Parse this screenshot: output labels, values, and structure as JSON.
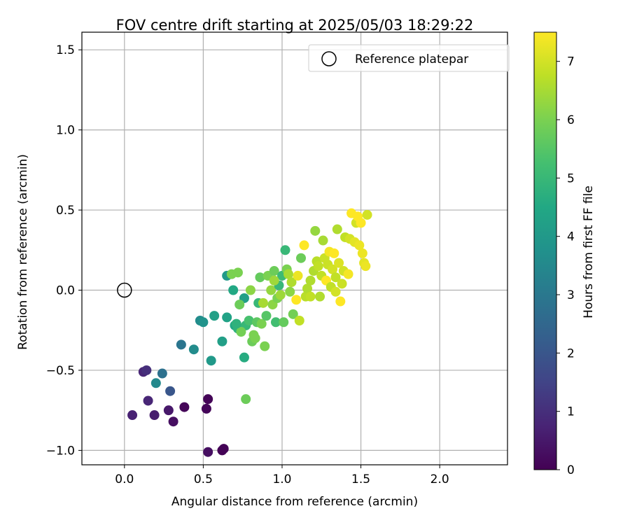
{
  "chart_data": {
    "type": "scatter",
    "title": "FOV centre drift starting at 2025/05/03 18:29:22",
    "xlabel": "Angular distance from reference (arcmin)",
    "ylabel": "Rotation from reference (arcmin)",
    "xlim": [
      -0.27,
      2.43
    ],
    "ylim": [
      -1.09,
      1.61
    ],
    "xticks": [
      0.0,
      0.5,
      1.0,
      1.5,
      2.0
    ],
    "xtick_labels": [
      "0.0",
      "0.5",
      "1.0",
      "1.5",
      "2.0"
    ],
    "yticks": [
      -1.0,
      -0.5,
      0.0,
      0.5,
      1.0,
      1.5
    ],
    "ytick_labels": [
      "−1.0",
      "−0.5",
      "0.0",
      "0.5",
      "1.0",
      "1.5"
    ],
    "grid": true,
    "legend": {
      "placement": "top-right",
      "entries": [
        "Reference platepar"
      ]
    },
    "colorbar": {
      "label": "Hours from first FF file",
      "range": [
        0,
        7.5
      ],
      "ticks": [
        0,
        1,
        2,
        3,
        4,
        5,
        6,
        7
      ],
      "tick_labels": [
        "0",
        "1",
        "2",
        "3",
        "4",
        "5",
        "6",
        "7"
      ],
      "colormap": "viridis"
    },
    "reference": {
      "x": 0.0,
      "y": 0.0
    },
    "points": [
      {
        "x": 0.62,
        "y": -1.0,
        "t": 0.05
      },
      {
        "x": 0.63,
        "y": -0.99,
        "t": 0.05
      },
      {
        "x": 0.53,
        "y": -1.01,
        "t": 0.3
      },
      {
        "x": 0.52,
        "y": -0.74,
        "t": 0.08
      },
      {
        "x": 0.53,
        "y": -0.68,
        "t": 0.06
      },
      {
        "x": 0.38,
        "y": -0.73,
        "t": 0.1
      },
      {
        "x": 0.31,
        "y": -0.82,
        "t": 0.3
      },
      {
        "x": 0.28,
        "y": -0.75,
        "t": 0.5
      },
      {
        "x": 0.19,
        "y": -0.78,
        "t": 0.6
      },
      {
        "x": 0.05,
        "y": -0.78,
        "t": 0.7
      },
      {
        "x": 0.15,
        "y": -0.69,
        "t": 0.8
      },
      {
        "x": 0.12,
        "y": -0.51,
        "t": 0.8
      },
      {
        "x": 0.14,
        "y": -0.5,
        "t": 1.0
      },
      {
        "x": 0.29,
        "y": -0.63,
        "t": 2.0
      },
      {
        "x": 0.24,
        "y": -0.52,
        "t": 2.8
      },
      {
        "x": 0.2,
        "y": -0.58,
        "t": 3.5
      },
      {
        "x": 0.36,
        "y": -0.34,
        "t": 2.9
      },
      {
        "x": 0.44,
        "y": -0.37,
        "t": 3.6
      },
      {
        "x": 0.48,
        "y": -0.19,
        "t": 3.6
      },
      {
        "x": 0.5,
        "y": -0.2,
        "t": 3.8
      },
      {
        "x": 0.55,
        "y": -0.44,
        "t": 4.0
      },
      {
        "x": 0.57,
        "y": -0.16,
        "t": 4.2
      },
      {
        "x": 0.62,
        "y": -0.32,
        "t": 4.2
      },
      {
        "x": 0.65,
        "y": -0.17,
        "t": 4.3
      },
      {
        "x": 0.65,
        "y": 0.09,
        "t": 4.0
      },
      {
        "x": 0.69,
        "y": 0.0,
        "t": 4.5
      },
      {
        "x": 0.7,
        "y": -0.22,
        "t": 4.5
      },
      {
        "x": 0.72,
        "y": -0.24,
        "t": 4.8
      },
      {
        "x": 0.76,
        "y": -0.42,
        "t": 4.6
      },
      {
        "x": 0.76,
        "y": -0.05,
        "t": 4.2
      },
      {
        "x": 0.77,
        "y": -0.22,
        "t": 5.0
      },
      {
        "x": 0.79,
        "y": -0.19,
        "t": 5.3
      },
      {
        "x": 0.68,
        "y": 0.1,
        "t": 6.0
      },
      {
        "x": 0.72,
        "y": 0.11,
        "t": 6.0
      },
      {
        "x": 0.73,
        "y": -0.09,
        "t": 5.8
      },
      {
        "x": 0.74,
        "y": -0.26,
        "t": 5.9
      },
      {
        "x": 0.8,
        "y": 0.0,
        "t": 6.2
      },
      {
        "x": 0.81,
        "y": -0.32,
        "t": 5.8
      },
      {
        "x": 0.82,
        "y": -0.28,
        "t": 6.0
      },
      {
        "x": 0.83,
        "y": -0.3,
        "t": 6.0
      },
      {
        "x": 0.84,
        "y": -0.2,
        "t": 5.6
      },
      {
        "x": 0.85,
        "y": -0.08,
        "t": 5.0
      },
      {
        "x": 0.86,
        "y": 0.08,
        "t": 5.7
      },
      {
        "x": 0.87,
        "y": -0.21,
        "t": 6.0
      },
      {
        "x": 0.88,
        "y": -0.08,
        "t": 6.5
      },
      {
        "x": 0.89,
        "y": -0.35,
        "t": 6.0
      },
      {
        "x": 0.9,
        "y": -0.16,
        "t": 5.5
      },
      {
        "x": 0.91,
        "y": 0.09,
        "t": 6.0
      },
      {
        "x": 0.93,
        "y": 0.0,
        "t": 6.3
      },
      {
        "x": 0.94,
        "y": -0.09,
        "t": 6.2
      },
      {
        "x": 0.95,
        "y": 0.12,
        "t": 5.8
      },
      {
        "x": 0.96,
        "y": -0.2,
        "t": 5.2
      },
      {
        "x": 0.97,
        "y": -0.05,
        "t": 6.0
      },
      {
        "x": 0.98,
        "y": 0.03,
        "t": 5.0
      },
      {
        "x": 0.99,
        "y": -0.03,
        "t": 6.4
      },
      {
        "x": 1.0,
        "y": 0.09,
        "t": 5.1
      },
      {
        "x": 1.01,
        "y": -0.2,
        "t": 5.7
      },
      {
        "x": 1.02,
        "y": 0.25,
        "t": 5.0
      },
      {
        "x": 1.03,
        "y": 0.13,
        "t": 6.0
      },
      {
        "x": 1.04,
        "y": 0.1,
        "t": 6.5
      },
      {
        "x": 1.05,
        "y": -0.01,
        "t": 6.2
      },
      {
        "x": 1.06,
        "y": 0.05,
        "t": 6.6
      },
      {
        "x": 1.07,
        "y": -0.15,
        "t": 5.9
      },
      {
        "x": 1.09,
        "y": -0.06,
        "t": 7.5
      },
      {
        "x": 1.1,
        "y": 0.09,
        "t": 7.3
      },
      {
        "x": 1.11,
        "y": -0.19,
        "t": 6.8
      },
      {
        "x": 1.12,
        "y": 0.2,
        "t": 5.8
      },
      {
        "x": 1.14,
        "y": 0.28,
        "t": 7.5
      },
      {
        "x": 1.15,
        "y": -0.04,
        "t": 6.7
      },
      {
        "x": 1.16,
        "y": 0.01,
        "t": 6.6
      },
      {
        "x": 1.18,
        "y": 0.06,
        "t": 6.6
      },
      {
        "x": 1.2,
        "y": 0.12,
        "t": 6.6
      },
      {
        "x": 1.21,
        "y": 0.37,
        "t": 6.3
      },
      {
        "x": 1.22,
        "y": 0.18,
        "t": 6.7
      },
      {
        "x": 1.23,
        "y": 0.15,
        "t": 6.8
      },
      {
        "x": 1.24,
        "y": -0.04,
        "t": 6.6
      },
      {
        "x": 1.25,
        "y": 0.09,
        "t": 6.8
      },
      {
        "x": 1.26,
        "y": 0.31,
        "t": 6.5
      },
      {
        "x": 1.27,
        "y": 0.2,
        "t": 6.9
      },
      {
        "x": 1.28,
        "y": 0.06,
        "t": 7.5
      },
      {
        "x": 1.29,
        "y": 0.16,
        "t": 6.9
      },
      {
        "x": 1.3,
        "y": 0.24,
        "t": 7.4
      },
      {
        "x": 1.31,
        "y": 0.02,
        "t": 6.8
      },
      {
        "x": 1.32,
        "y": 0.13,
        "t": 7.0
      },
      {
        "x": 1.33,
        "y": 0.23,
        "t": 7.5
      },
      {
        "x": 1.34,
        "y": 0.08,
        "t": 6.8
      },
      {
        "x": 1.35,
        "y": 0.38,
        "t": 6.6
      },
      {
        "x": 1.36,
        "y": 0.17,
        "t": 7.1
      },
      {
        "x": 1.37,
        "y": -0.07,
        "t": 7.5
      },
      {
        "x": 1.38,
        "y": 0.04,
        "t": 6.9
      },
      {
        "x": 1.39,
        "y": 0.12,
        "t": 7.0
      },
      {
        "x": 1.4,
        "y": 0.33,
        "t": 6.8
      },
      {
        "x": 1.42,
        "y": 0.1,
        "t": 7.4
      },
      {
        "x": 1.43,
        "y": 0.32,
        "t": 7.0
      },
      {
        "x": 1.44,
        "y": 0.48,
        "t": 7.5
      },
      {
        "x": 1.46,
        "y": 0.3,
        "t": 7.2
      },
      {
        "x": 1.47,
        "y": 0.42,
        "t": 7.0
      },
      {
        "x": 1.48,
        "y": 0.46,
        "t": 7.5
      },
      {
        "x": 1.49,
        "y": 0.28,
        "t": 7.3
      },
      {
        "x": 1.5,
        "y": 0.42,
        "t": 7.5
      },
      {
        "x": 1.51,
        "y": 0.23,
        "t": 7.3
      },
      {
        "x": 1.52,
        "y": 0.17,
        "t": 7.2
      },
      {
        "x": 1.53,
        "y": 0.15,
        "t": 7.3
      },
      {
        "x": 1.54,
        "y": 0.47,
        "t": 7.0
      },
      {
        "x": 0.71,
        "y": -0.21,
        "t": 4.8
      },
      {
        "x": 0.77,
        "y": -0.68,
        "t": 5.8
      },
      {
        "x": 1.34,
        "y": -0.01,
        "t": 7.0
      },
      {
        "x": 1.18,
        "y": -0.04,
        "t": 6.8
      },
      {
        "x": 0.95,
        "y": 0.06,
        "t": 6.4
      }
    ]
  }
}
